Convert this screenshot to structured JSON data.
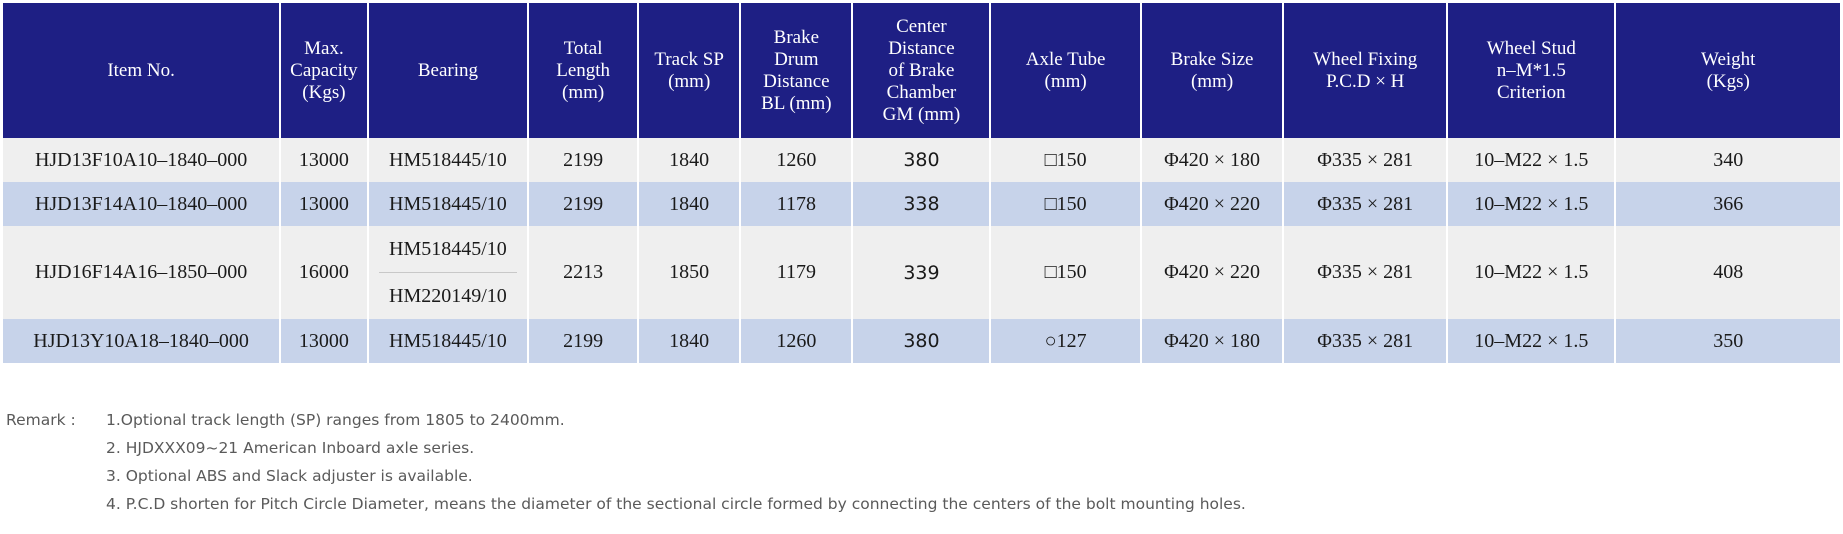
{
  "table": {
    "headers": [
      "Item No.",
      "Max.\nCapacity\n(Kgs)",
      "Bearing",
      "Total\nLength\n(mm)",
      "Track SP\n(mm)",
      "Brake\nDrum\nDistance\nBL (mm)",
      "Center\nDistance\nof Brake\nChamber\nGM (mm)",
      "Axle Tube\n(mm)",
      "Brake Size\n(mm)",
      "Wheel Fixing\nP.C.D × H",
      "Wheel Stud\nn–M*1.5\nCriterion",
      "Weight\n(Kgs)"
    ],
    "rows": [
      {
        "item_no": "HJD13F10A10–1840–000",
        "capacity": "13000",
        "bearing": "HM518445/10",
        "total_length": "2199",
        "track_sp": "1840",
        "brake_drum_distance": "1260",
        "center_distance": "380",
        "axle_tube": "□150",
        "brake_size": "Φ420 × 180",
        "wheel_fixing": "Φ335 × 281",
        "wheel_stud": "10–M22 × 1.5",
        "weight": "340"
      },
      {
        "item_no": "HJD13F14A10–1840–000",
        "capacity": "13000",
        "bearing": "HM518445/10",
        "total_length": "2199",
        "track_sp": "1840",
        "brake_drum_distance": "1178",
        "center_distance": "338",
        "axle_tube": "□150",
        "brake_size": "Φ420 × 220",
        "wheel_fixing": "Φ335 × 281",
        "wheel_stud": "10–M22 × 1.5",
        "weight": "366"
      },
      {
        "item_no": "HJD16F14A16–1850–000",
        "capacity": "16000",
        "bearing_1": "HM518445/10",
        "bearing_2": "HM220149/10",
        "total_length": "2213",
        "track_sp": "1850",
        "brake_drum_distance": "1179",
        "center_distance": "339",
        "axle_tube": "□150",
        "brake_size": "Φ420 × 220",
        "wheel_fixing": "Φ335 × 281",
        "wheel_stud": "10–M22 × 1.5",
        "weight": "408"
      },
      {
        "item_no": "HJD13Y10A18–1840–000",
        "capacity": "13000",
        "bearing": "HM518445/10",
        "total_length": "2199",
        "track_sp": "1840",
        "brake_drum_distance": "1260",
        "center_distance": "380",
        "axle_tube": "○127",
        "brake_size": "Φ420 × 180",
        "wheel_fixing": "Φ335 × 281",
        "wheel_stud": "10–M22 × 1.5",
        "weight": "350"
      }
    ]
  },
  "remarks": {
    "label": "Remark :",
    "items": [
      "1.Optional track length (SP) ranges from 1805 to 2400mm.",
      "2. HJDXXX09~21 American Inboard axle series.",
      "3. Optional ABS and Slack adjuster is available.",
      "4. P.C.D shorten for Pitch Circle Diameter, means the diameter of the sectional circle formed by connecting the centers of the bolt mounting holes."
    ]
  },
  "colors": {
    "header_bg": "#1e1f84",
    "row_light": "#efefef",
    "row_dark": "#c7d3ea"
  }
}
